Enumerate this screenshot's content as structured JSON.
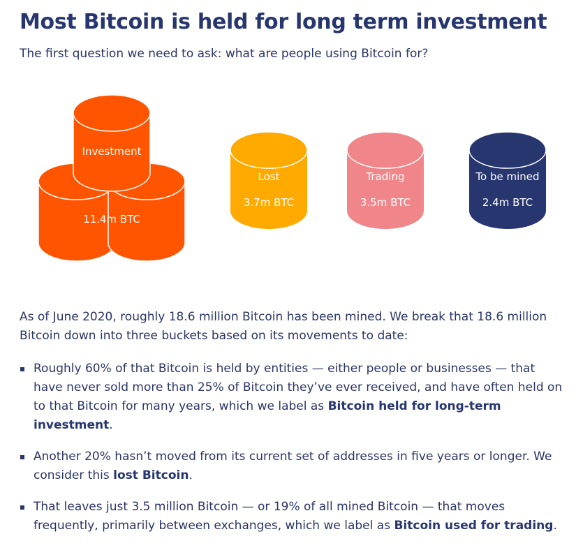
{
  "title": "Most Bitcoin is held for long term investment",
  "subtitle": "The first question we need to ask: what are people using Bitcoin for?",
  "colors": {
    "investment": "#ff5500",
    "lost": "#ffaa00",
    "trading": "#f0868a",
    "to_be_mined": "#28366f",
    "text": "#2a3566"
  },
  "buckets": [
    {
      "label": "Investment",
      "value": "11.4m BTC",
      "color": "#ff5500"
    },
    {
      "label": "Lost",
      "value": "3.7m BTC",
      "color": "#ffaa00"
    },
    {
      "label": "Trading",
      "value": "3.5m BTC",
      "color": "#f0868a"
    },
    {
      "label": "To be mined",
      "value": "2.4m BTC",
      "color": "#28366f"
    }
  ],
  "intro": "As of June 2020, roughly 18.6 million Bitcoin has been mined. We break that 18.6 million Bitcoin down into three buckets based on its movements to date:",
  "bullets": [
    {
      "text": "Roughly 60% of that Bitcoin is held by entities — either people or businesses — that have never sold more than 25% of Bitcoin they’ve ever received, and have often held on to that Bitcoin for many years, which we label as ",
      "bold": "Bitcoin held for long-term investment",
      "end": "."
    },
    {
      "text": "Another 20% hasn’t moved from its current set of addresses in five years or longer. We consider this ",
      "bold": "lost Bitcoin",
      "end": "."
    },
    {
      "text": "That leaves just 3.5 million Bitcoin — or 19% of all mined Bitcoin — that moves frequently, primarily between exchanges, which we label as ",
      "bold": "Bitcoin used for trading",
      "end": "."
    }
  ]
}
